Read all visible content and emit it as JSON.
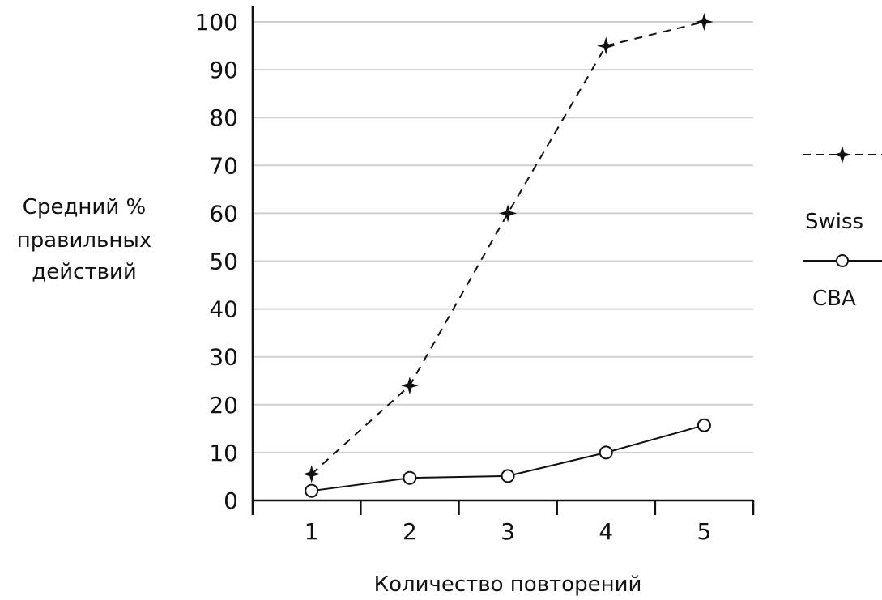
{
  "chart_data": {
    "type": "line",
    "title": "",
    "xlabel": "Количество повторений",
    "ylabel_lines": [
      "Средний %",
      "правильных",
      "действий"
    ],
    "categories": [
      "1",
      "2",
      "3",
      "4",
      "5"
    ],
    "x": [
      1,
      2,
      3,
      4,
      5
    ],
    "xlim": [
      0.4,
      5.5
    ],
    "ylim": [
      0,
      100
    ],
    "yticks": [
      "0",
      "10",
      "20",
      "30",
      "40",
      "50",
      "60",
      "70",
      "80",
      "90",
      "100"
    ],
    "grid": true,
    "legend_position": "right",
    "series": [
      {
        "name": "Swiss",
        "values": [
          5.5,
          24,
          60,
          95,
          100
        ],
        "line_style": "dashed",
        "marker": "star",
        "color": "#111111"
      },
      {
        "name": "CBA",
        "values": [
          2,
          4.7,
          5.1,
          10,
          15.7
        ],
        "line_style": "solid",
        "marker": "circle",
        "color": "#111111"
      }
    ]
  }
}
